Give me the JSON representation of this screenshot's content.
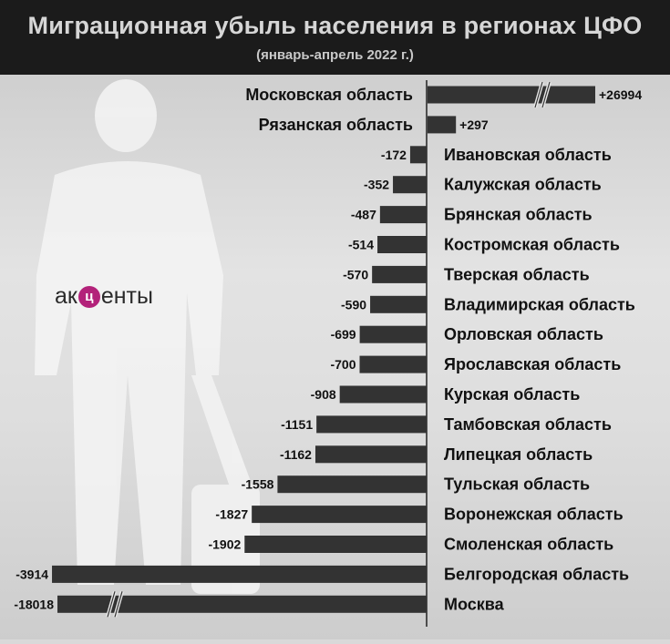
{
  "header": {
    "title": "Миграционная убыль населения в регионах ЦФО",
    "subtitle": "(январь-апрель 2022 г.)"
  },
  "logo": {
    "before": "ак",
    "mark": "ц",
    "after": "енты"
  },
  "colors": {
    "bar": "#333333",
    "header_bg": "#1b1b1b",
    "logo_accent": "#b3227a"
  },
  "chart_data": {
    "type": "bar",
    "orientation": "horizontal",
    "title": "Миграционная убыль населения в регионах ЦФО",
    "subtitle": "(январь-апрель 2022 г.)",
    "categories": [
      "Московская область",
      "Рязанская область",
      "Ивановская область",
      "Калужская область",
      "Брянская область",
      "Костромская область",
      "Тверская область",
      "Владимирская область",
      "Орловская область",
      "Ярославская область",
      "Курская область",
      "Тамбовская область",
      "Липецкая область",
      "Тульская область",
      "Воронежская область",
      "Смоленская область",
      "Белгородская область",
      "Москва"
    ],
    "values": [
      26994,
      297,
      -172,
      -352,
      -487,
      -514,
      -570,
      -590,
      -699,
      -700,
      -908,
      -1151,
      -1162,
      -1558,
      -1827,
      -1902,
      -3914,
      -18018
    ],
    "labels": [
      "+26994",
      "+297",
      "-172",
      "-352",
      "-487",
      "-514",
      "-570",
      "-590",
      "-699",
      "-700",
      "-908",
      "-1151",
      "-1162",
      "-1558",
      "-1827",
      "-1902",
      "-3914",
      "-18018"
    ],
    "truncated": [
      "Московская область",
      "Москва"
    ],
    "grid": false,
    "legend": "none"
  }
}
